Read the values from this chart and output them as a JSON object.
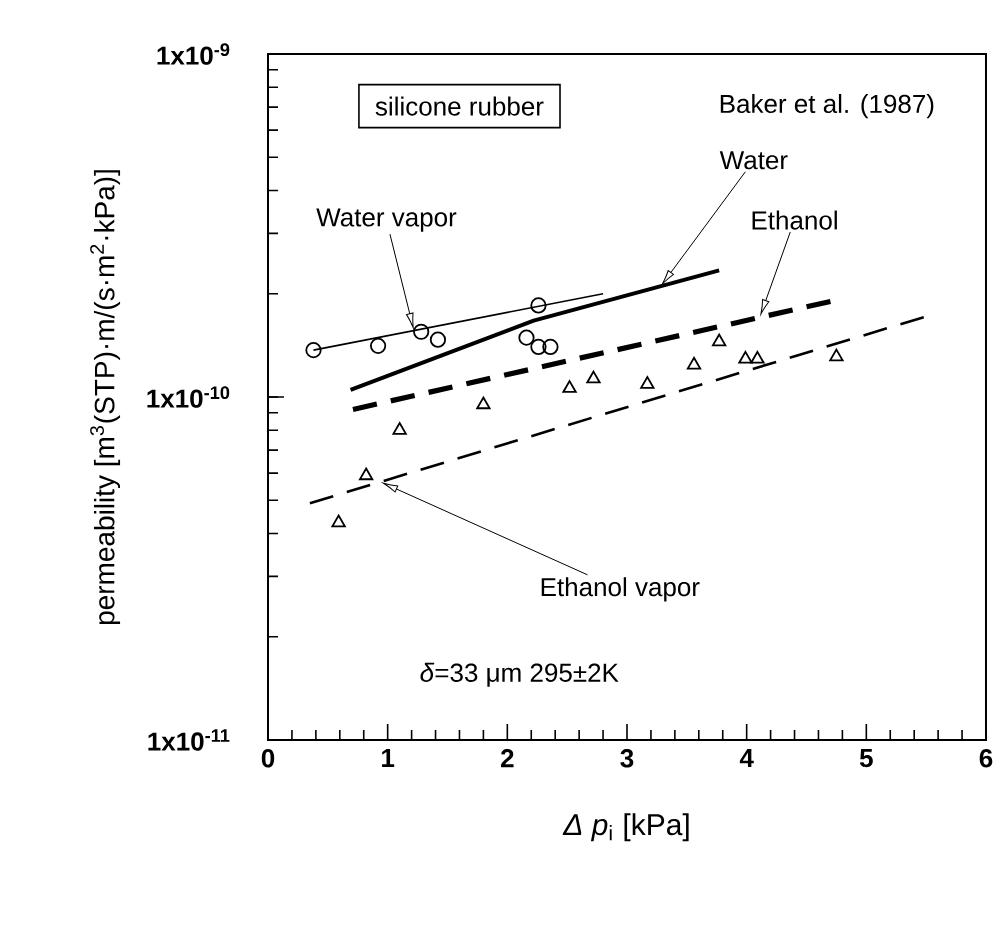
{
  "chart_data": {
    "type": "scatter",
    "xlabel": "*Δ p*$_{i}$ [kPa]",
    "ylabel": "permeability [m$^{3}$(STP)·m/(s·m$^{2}$·kPa)]",
    "log": "y",
    "xlim": [
      0,
      6
    ],
    "ylim": [
      1e-11,
      1e-09
    ],
    "xticks": [
      0,
      1,
      2,
      3,
      4,
      5,
      6
    ],
    "yticks": [
      {
        "value": 1e-11,
        "label": "1x10$^{-11}$"
      },
      {
        "value": 1e-10,
        "label": "1x10$^{-10}$"
      },
      {
        "value": 1e-09,
        "label": "1x10$^{-9}$"
      }
    ],
    "series": [
      {
        "type": "line",
        "color": "#000000",
        "line_style": "solid",
        "marker": "none",
        "x": [
          0.38,
          2.8
        ],
        "values": [
          1.37e-10,
          2e-10
        ]
      },
      {
        "type": "line",
        "color": "#000000",
        "line_style": "solid",
        "marker": "none",
        "x": [
          0.69,
          2.22,
          3.77
        ],
        "values": [
          1.05e-10,
          1.67e-10,
          2.34e-10
        ]
      },
      {
        "type": "line",
        "color": "#000000",
        "line_style": "dashed",
        "marker": "none",
        "x": [
          0.71,
          4.7
        ],
        "values": [
          9.2e-11,
          1.9e-10
        ]
      },
      {
        "type": "line",
        "color": "#000000",
        "line_style": "dashed",
        "marker": "none",
        "x": [
          0.35,
          5.48
        ],
        "values": [
          4.9e-11,
          1.71e-10
        ]
      },
      {
        "color": "#000000",
        "marker": "circle",
        "x": [
          0.38,
          0.92,
          1.28,
          1.42,
          2.26,
          2.16,
          2.36
        ],
        "values": [
          1.37e-10,
          1.41e-10,
          1.55e-10,
          1.47e-10,
          1.85e-10,
          1.49e-10,
          1.4e-10
        ]
      },
      {
        "color": "#000000",
        "marker": "circle",
        "x": [
          2.26
        ],
        "values": [
          1.4e-10
        ]
      },
      {
        "color": "#000000",
        "marker": "triangle",
        "x": [
          0.59,
          0.82,
          1.1,
          1.8,
          2.52,
          2.72,
          3.17,
          3.56,
          3.77,
          3.99,
          4.09,
          4.75
        ],
        "values": [
          4.3e-11,
          5.9e-11,
          8e-11,
          9.5e-11,
          1.06e-10,
          1.13e-10,
          1.09e-10,
          1.24e-10,
          1.45e-10,
          1.29e-10,
          1.29e-10,
          1.31e-10
        ]
      }
    ],
    "annotations": [
      "silicone rubber",
      "Baker et al. (1987)",
      "*δ*=33 μm   295±2K",
      {
        "text": "Water vapor",
        "x": 1.22,
        "y": 1.56e-10
      },
      {
        "text": "Water",
        "x": 3.28,
        "y": 2.1e-10
      },
      {
        "text": "Ethanol",
        "x": 4.11,
        "y": 1.71e-10
      },
      {
        "text": "Ethanol vapor",
        "x": 0.94,
        "y": 5.66e-11
      }
    ]
  }
}
